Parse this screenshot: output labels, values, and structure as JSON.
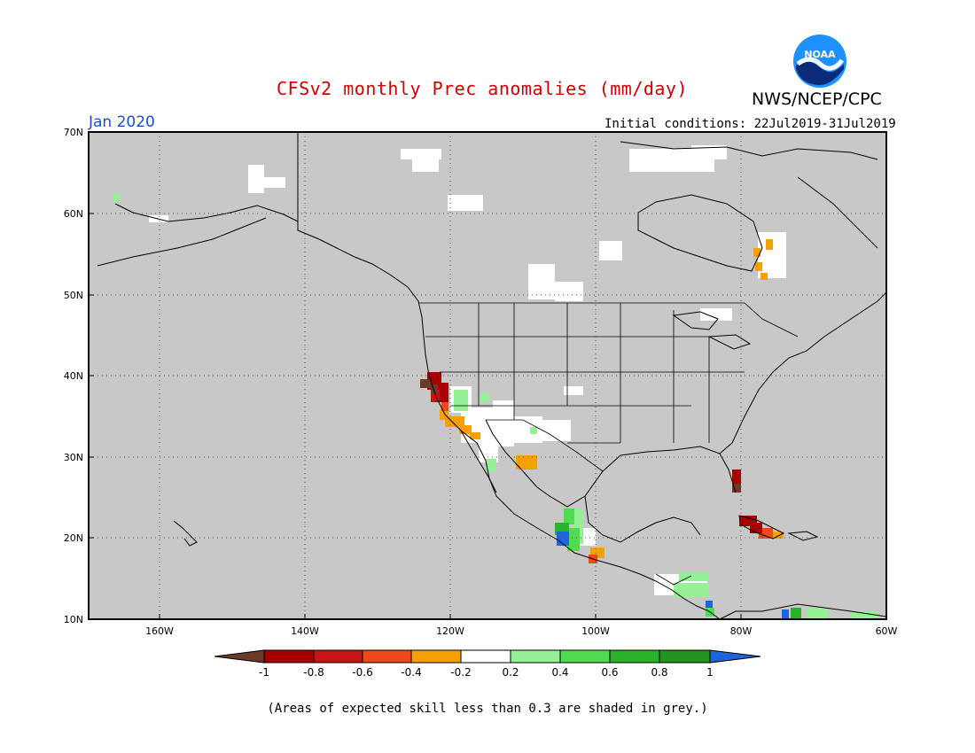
{
  "header": {
    "title": "CFSv2 monthly Prec anomalies (mm/day)",
    "organization": "NWS/NCEP/CPC",
    "logo_text": "NOAA",
    "valid_month": "Jan 2020",
    "initial_conditions": "Initial conditions: 22Jul2019-31Jul2019"
  },
  "map": {
    "projection": "lat-lon",
    "lon_range": [
      -170,
      -60
    ],
    "lat_range": [
      10,
      70
    ],
    "background_color": "#c8c8c8",
    "lat_labels": [
      "70N",
      "60N",
      "50N",
      "40N",
      "30N",
      "20N",
      "10N"
    ],
    "lon_labels": [
      "160W",
      "140W",
      "120W",
      "100W",
      "80W",
      "60W"
    ]
  },
  "legend": {
    "tick_labels": [
      "-1",
      "-0.8",
      "-0.6",
      "-0.4",
      "-0.2",
      "0.2",
      "0.4",
      "0.6",
      "0.8",
      "1"
    ],
    "colors": [
      "#6b3b2a",
      "#a80000",
      "#c81414",
      "#f04818",
      "#f7a000",
      "#ffffff",
      "#96f096",
      "#50dc50",
      "#28b428",
      "#1e961e",
      "#1e64dc"
    ]
  },
  "anomaly_areas": [
    {
      "region": "Northern California coast",
      "category": "-1 to -0.8",
      "color": "#a80000"
    },
    {
      "region": "Northern California coast",
      "category": "below -1",
      "color": "#6b3b2a"
    },
    {
      "region": "Southern California coast",
      "category": "-0.4 to -0.2",
      "color": "#f7a000"
    },
    {
      "region": "Southwest interior",
      "category": "0.2 to 0.4",
      "color": "#96f096"
    },
    {
      "region": "Western Mexico",
      "category": "0.4 to 0.6",
      "color": "#50dc50"
    },
    {
      "region": "Western Mexico coast",
      "category": "above 1",
      "color": "#1e64dc"
    },
    {
      "region": "Southern Florida",
      "category": "-1 to -0.8",
      "color": "#a80000"
    },
    {
      "region": "Cuba / Hispaniola",
      "category": "-0.8 to -0.6",
      "color": "#c81414"
    },
    {
      "region": "Quebec / Labrador",
      "category": "-0.4 to -0.2",
      "color": "#f7a000"
    }
  ],
  "footnote": "(Areas of expected skill less than 0.3 are shaded in grey.)"
}
